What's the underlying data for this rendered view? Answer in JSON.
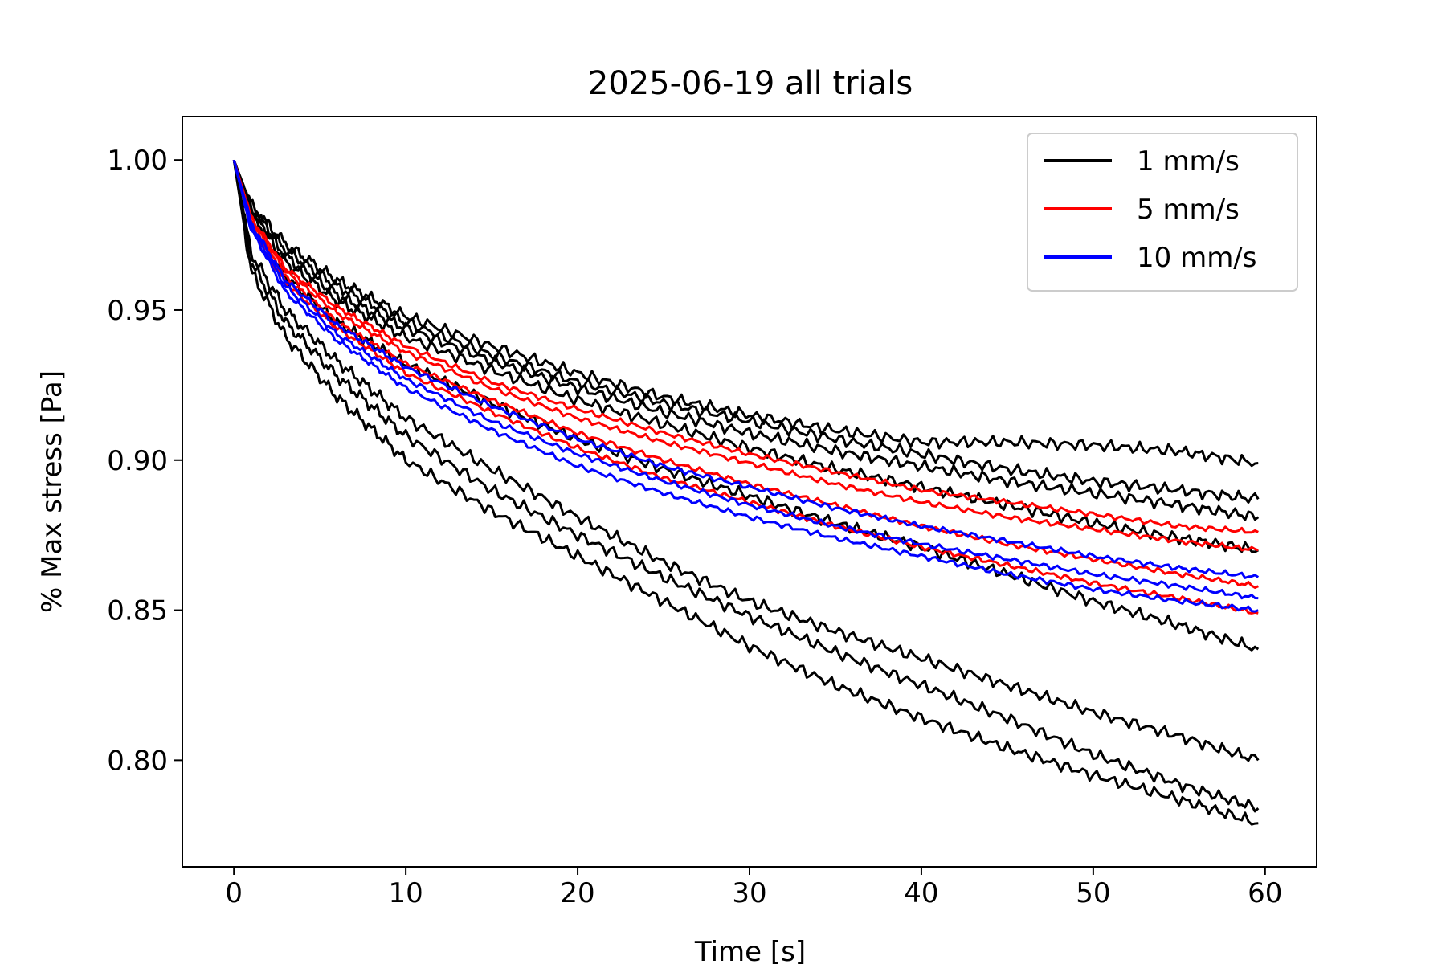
{
  "chart_data": {
    "type": "line",
    "title": "2025-06-19 all trials",
    "xlabel": "Time [s]",
    "ylabel": "% Max stress [Pa]",
    "xlim": [
      -3,
      63
    ],
    "ylim": [
      0.7645,
      1.0145
    ],
    "xticks": [
      0,
      10,
      20,
      30,
      40,
      50,
      60
    ],
    "yticks": [
      0.8,
      0.85,
      0.9,
      0.95,
      1.0
    ],
    "xtick_labels": [
      "0",
      "10",
      "20",
      "30",
      "40",
      "50",
      "60"
    ],
    "ytick_labels": [
      "0.80",
      "0.85",
      "0.90",
      "0.95",
      "1.00"
    ],
    "grid": false,
    "legend_position": "top-right",
    "legend": [
      {
        "label": "1 mm/s",
        "color": "#000000"
      },
      {
        "label": "5 mm/s",
        "color": "#ff0000"
      },
      {
        "label": "10 mm/s",
        "color": "#0000ff"
      }
    ],
    "series": [
      {
        "group": "1 mm/s",
        "color": "#000000",
        "x": [
          0,
          1,
          3,
          6,
          10,
          15,
          20,
          25,
          30,
          35,
          40,
          45,
          50,
          55,
          59.6
        ],
        "y": [
          1.0,
          0.985,
          0.972,
          0.96,
          0.948,
          0.938,
          0.929,
          0.921,
          0.915,
          0.91,
          0.906,
          0.906,
          0.905,
          0.903,
          0.899
        ]
      },
      {
        "group": "1 mm/s",
        "color": "#000000",
        "x": [
          0,
          1,
          3,
          6,
          10,
          15,
          20,
          25,
          30,
          35,
          40,
          45,
          50,
          55,
          59.6
        ],
        "y": [
          1.0,
          0.984,
          0.97,
          0.958,
          0.946,
          0.935,
          0.926,
          0.919,
          0.913,
          0.907,
          0.902,
          0.897,
          0.893,
          0.89,
          0.887
        ]
      },
      {
        "group": "1 mm/s",
        "color": "#000000",
        "x": [
          0,
          1,
          3,
          6,
          10,
          15,
          20,
          25,
          30,
          35,
          40,
          45,
          50,
          55,
          59.6
        ],
        "y": [
          1.0,
          0.983,
          0.968,
          0.955,
          0.944,
          0.933,
          0.924,
          0.916,
          0.909,
          0.903,
          0.898,
          0.893,
          0.889,
          0.885,
          0.881
        ]
      },
      {
        "group": "1 mm/s",
        "color": "#000000",
        "x": [
          0,
          1,
          3,
          6,
          10,
          15,
          20,
          25,
          30,
          35,
          40,
          45,
          50,
          55,
          59.6
        ],
        "y": [
          1.0,
          0.982,
          0.966,
          0.953,
          0.941,
          0.93,
          0.92,
          0.912,
          0.904,
          0.897,
          0.891,
          0.885,
          0.879,
          0.874,
          0.87
        ]
      },
      {
        "group": "1 mm/s",
        "color": "#000000",
        "x": [
          0,
          1,
          3,
          6,
          10,
          15,
          20,
          25,
          30,
          35,
          40,
          45,
          50,
          55,
          59.6
        ],
        "y": [
          1.0,
          0.978,
          0.961,
          0.946,
          0.932,
          0.919,
          0.907,
          0.897,
          0.888,
          0.879,
          0.871,
          0.862,
          0.853,
          0.845,
          0.837
        ]
      },
      {
        "group": "1 mm/s",
        "color": "#000000",
        "x": [
          0,
          1,
          3,
          6,
          10,
          15,
          20,
          25,
          30,
          35,
          40,
          45,
          50,
          55,
          59.6
        ],
        "y": [
          1.0,
          0.969,
          0.95,
          0.933,
          0.914,
          0.897,
          0.881,
          0.866,
          0.853,
          0.843,
          0.834,
          0.825,
          0.816,
          0.808,
          0.8
        ]
      },
      {
        "group": "1 mm/s",
        "color": "#000000",
        "x": [
          0,
          1,
          3,
          6,
          10,
          15,
          20,
          25,
          30,
          35,
          40,
          45,
          50,
          55,
          59.6
        ],
        "y": [
          1.0,
          0.966,
          0.946,
          0.928,
          0.908,
          0.89,
          0.875,
          0.861,
          0.848,
          0.836,
          0.825,
          0.814,
          0.802,
          0.792,
          0.784
        ]
      },
      {
        "group": "1 mm/s",
        "color": "#000000",
        "x": [
          0,
          1,
          3,
          6,
          10,
          15,
          20,
          25,
          30,
          35,
          40,
          45,
          50,
          55,
          59.6
        ],
        "y": [
          1.0,
          0.963,
          0.941,
          0.921,
          0.9,
          0.883,
          0.868,
          0.853,
          0.838,
          0.825,
          0.814,
          0.804,
          0.795,
          0.787,
          0.779
        ]
      },
      {
        "group": "5 mm/s",
        "color": "#ff0000",
        "x": [
          0,
          1,
          3,
          6,
          10,
          15,
          20,
          25,
          30,
          35,
          40,
          45,
          50,
          55,
          59.6
        ],
        "y": [
          1.0,
          0.981,
          0.964,
          0.951,
          0.938,
          0.926,
          0.917,
          0.909,
          0.902,
          0.896,
          0.89,
          0.886,
          0.882,
          0.878,
          0.876
        ]
      },
      {
        "group": "5 mm/s",
        "color": "#ff0000",
        "x": [
          0,
          1,
          3,
          6,
          10,
          15,
          20,
          25,
          30,
          35,
          40,
          45,
          50,
          55,
          59.6
        ],
        "y": [
          1.0,
          0.98,
          0.963,
          0.949,
          0.936,
          0.924,
          0.914,
          0.906,
          0.899,
          0.892,
          0.886,
          0.881,
          0.877,
          0.873,
          0.87
        ]
      },
      {
        "group": "5 mm/s",
        "color": "#ff0000",
        "x": [
          0,
          1,
          3,
          6,
          10,
          15,
          20,
          25,
          30,
          35,
          40,
          45,
          50,
          55,
          59.6
        ],
        "y": [
          1.0,
          0.979,
          0.961,
          0.946,
          0.932,
          0.92,
          0.909,
          0.9,
          0.892,
          0.885,
          0.878,
          0.872,
          0.867,
          0.862,
          0.858
        ]
      },
      {
        "group": "5 mm/s",
        "color": "#ff0000",
        "x": [
          0,
          1,
          3,
          6,
          10,
          15,
          20,
          25,
          30,
          35,
          40,
          45,
          50,
          55,
          59.6
        ],
        "y": [
          1.0,
          0.978,
          0.959,
          0.944,
          0.929,
          0.916,
          0.904,
          0.894,
          0.886,
          0.878,
          0.871,
          0.865,
          0.859,
          0.854,
          0.849
        ]
      },
      {
        "group": "10 mm/s",
        "color": "#0000ff",
        "x": [
          0,
          1,
          3,
          6,
          10,
          15,
          20,
          25,
          30,
          35,
          40,
          45,
          50,
          55,
          59.6
        ],
        "y": [
          1.0,
          0.979,
          0.96,
          0.945,
          0.931,
          0.918,
          0.907,
          0.898,
          0.891,
          0.884,
          0.878,
          0.873,
          0.868,
          0.864,
          0.861
        ]
      },
      {
        "group": "10 mm/s",
        "color": "#0000ff",
        "x": [
          0,
          1,
          3,
          6,
          10,
          15,
          20,
          25,
          30,
          35,
          40,
          45,
          50,
          55,
          59.6
        ],
        "y": [
          1.0,
          0.978,
          0.958,
          0.942,
          0.927,
          0.913,
          0.902,
          0.893,
          0.885,
          0.878,
          0.872,
          0.867,
          0.862,
          0.858,
          0.854
        ]
      },
      {
        "group": "10 mm/s",
        "color": "#0000ff",
        "x": [
          0,
          1,
          3,
          6,
          10,
          15,
          20,
          25,
          30,
          35,
          40,
          45,
          50,
          55,
          59.6
        ],
        "y": [
          1.0,
          0.977,
          0.956,
          0.94,
          0.924,
          0.91,
          0.898,
          0.889,
          0.881,
          0.874,
          0.868,
          0.862,
          0.857,
          0.853,
          0.85
        ]
      }
    ]
  }
}
